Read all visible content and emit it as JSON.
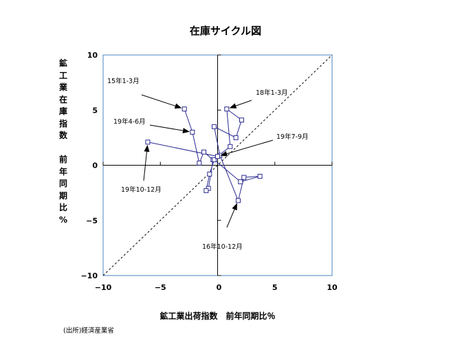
{
  "chart_data": {
    "type": "scatter",
    "title": "在庫サイクル図",
    "xlabel": "鉱工業出荷指数　前年同期比％",
    "ylabel_lines": [
      "鉱",
      "工",
      "業",
      "在",
      "庫",
      "指",
      "数",
      "",
      "前",
      "年",
      "同",
      "期",
      "比",
      "%"
    ],
    "xlim": [
      -10,
      10
    ],
    "ylim": [
      -10,
      10
    ],
    "xticks": [
      -10,
      -5,
      0,
      5,
      10
    ],
    "yticks": [
      -10,
      -5,
      0,
      5,
      10
    ],
    "grid": false,
    "reference_line": "y = x",
    "colors": {
      "series": "#2a2a90",
      "axis": "#4a86c0"
    },
    "series": [
      {
        "points": [
          [
            -2.9,
            5.1
          ],
          [
            -2.2,
            3.0
          ],
          [
            -1.6,
            0.2
          ],
          [
            -1.2,
            1.2
          ],
          [
            -0.4,
            0.5
          ],
          [
            -0.8,
            -2.1
          ],
          [
            -1.0,
            -2.3
          ],
          [
            -0.7,
            -0.8
          ],
          [
            -0.3,
            0.5
          ],
          [
            2.0,
            -1.5
          ],
          [
            3.7,
            -1.0
          ],
          [
            2.3,
            -1.1
          ],
          [
            1.8,
            -3.2
          ],
          [
            0.2,
            0.9
          ],
          [
            -0.3,
            3.5
          ],
          [
            1.6,
            2.5
          ],
          [
            2.1,
            4.1
          ],
          [
            0.8,
            5.1
          ],
          [
            1.1,
            1.7
          ],
          [
            0.0,
            0.8
          ],
          [
            -6.1,
            2.1
          ]
        ]
      }
    ],
    "annotations": [
      {
        "text": "15年1-3月",
        "point": [
          -2.9,
          5.1
        ]
      },
      {
        "text": "18年1-3月",
        "point": [
          0.8,
          5.1
        ]
      },
      {
        "text": "19年4-6月",
        "point": [
          -2.2,
          3.0
        ]
      },
      {
        "text": "19年7-9月",
        "point": [
          0.0,
          0.8
        ]
      },
      {
        "text": "19年10-12月",
        "point": [
          -6.1,
          2.1
        ]
      },
      {
        "text": "16年10-12月",
        "point": [
          1.8,
          -3.2
        ]
      }
    ]
  },
  "source": "(出所)経済産業省"
}
